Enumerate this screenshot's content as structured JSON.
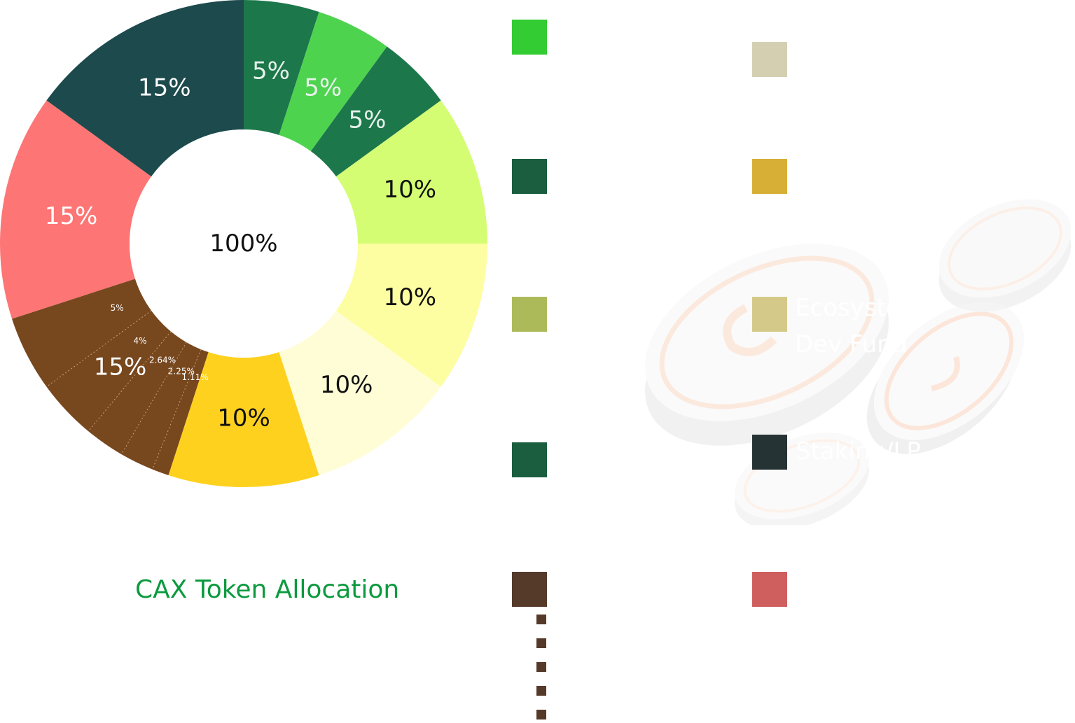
{
  "chart_data": {
    "type": "pie",
    "title": "CAX Token Allocation",
    "center_label": "100%",
    "slices": [
      {
        "label": "5%",
        "value": 5,
        "color": "#1c774b",
        "text_color": "#e6f2ea"
      },
      {
        "label": "5%",
        "value": 5,
        "color": "#4ed34f",
        "text_color": "#e6f2ea"
      },
      {
        "label": "5%",
        "value": 5,
        "color": "#1c774b",
        "text_color": "#e6f2ea"
      },
      {
        "label": "10%",
        "value": 10,
        "color": "#d4fd74",
        "text_color": "#111111"
      },
      {
        "label": "10%",
        "value": 10,
        "color": "#fdfea1",
        "text_color": "#111111"
      },
      {
        "label": "10%",
        "value": 10,
        "color": "#fefdd5",
        "text_color": "#111111"
      },
      {
        "label": "10%",
        "value": 10,
        "color": "#fed11f",
        "text_color": "#111111"
      },
      {
        "label": "15%",
        "value": 15,
        "color": "#77471e",
        "text_color": "#ffffff",
        "sub_segments": [
          {
            "label": "1.11%",
            "value": 1.11
          },
          {
            "label": "2.25%",
            "value": 2.25
          },
          {
            "label": "2.64%",
            "value": 2.64
          },
          {
            "label": "4%",
            "value": 4
          },
          {
            "label": "5%",
            "value": 5
          }
        ]
      },
      {
        "label": "15%",
        "value": 15,
        "color": "#fd7574",
        "text_color": "#ffffff"
      },
      {
        "label": "15%",
        "value": 15,
        "color": "#1d4a4c",
        "text_color": "#ffffff"
      }
    ]
  },
  "legend": {
    "left_swatches": [
      {
        "color": "#33cd33"
      },
      {
        "color": "#1b5e3f"
      },
      {
        "color": "#adba5a"
      },
      {
        "color": "#1b5e3f"
      },
      {
        "color": "#553a2a"
      }
    ],
    "right_swatches": [
      {
        "color": "#d4cfb0"
      },
      {
        "color": "#d7ae36"
      },
      {
        "color": "#d4c989"
      },
      {
        "color": "#263334"
      },
      {
        "color": "#cf5e5f"
      }
    ],
    "sub_markers": [
      {
        "color": "#553a2a"
      },
      {
        "color": "#553a2a"
      },
      {
        "color": "#553a2a"
      },
      {
        "color": "#553a2a"
      },
      {
        "color": "#553a2a"
      }
    ],
    "faint_labels": [
      {
        "text": "Ecosystem"
      },
      {
        "text": "Dev Fund"
      },
      {
        "text": "Staking/LP"
      }
    ]
  },
  "decorations": [
    {
      "icon": "coin-icon"
    },
    {
      "icon": "coin-icon"
    },
    {
      "icon": "coin-icon"
    },
    {
      "icon": "coin-icon"
    }
  ]
}
